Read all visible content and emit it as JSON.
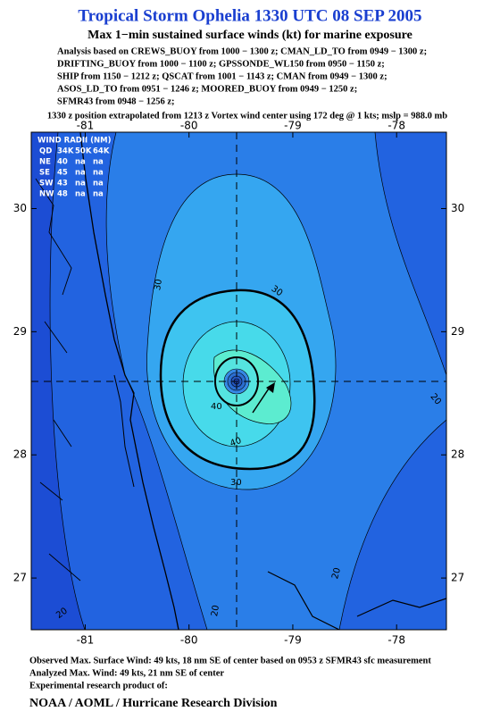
{
  "header": {
    "title": "Tropical Storm Ophelia 1330 UTC 08 SEP 2005",
    "subtitle": "Max 1−min sustained surface winds (kt) for marine exposure",
    "analysis_lines": [
      "Analysis based on  CREWS_BUOY from 1000 − 1300 z;  CMAN_LD_TO from 0949 − 1300 z;",
      "DRIFTING_BUOY from 1000 − 1100 z;  GPSSONDE_WL150 from 0950 − 1150 z;",
      "SHIP from 1150 − 1212 z;  QSCAT from 1001 − 1143 z;  CMAN from 0949 − 1300 z;",
      "ASOS_LD_TO from 0951 − 1246 z;  MOORED_BUOY from 0949 − 1250 z;",
      "SFMR43 from 0948 − 1256 z;"
    ],
    "position_note": "1330 z position extrapolated from 1213 z Vortex wind center using 172 deg @ 1 kts; mslp = 988.0 mb"
  },
  "map": {
    "xlim": [
      -81.52,
      -77.52
    ],
    "ylim": [
      26.58,
      30.62
    ],
    "xticks": [
      -81,
      -80,
      -79,
      -78
    ],
    "yticks": [
      27,
      28,
      29,
      30
    ],
    "contour_labels": [
      "30",
      "30",
      "40",
      "40",
      "30",
      "20",
      "20",
      "20",
      "20"
    ],
    "wind_radii": {
      "title": "WIND RADII (NM)",
      "columns": [
        "QD",
        "34K",
        "50K",
        "64K"
      ],
      "rows": [
        [
          "NE",
          40,
          "na",
          "na"
        ],
        [
          "SE",
          45,
          "na",
          "na"
        ],
        [
          "SW",
          43,
          "na",
          "na"
        ],
        [
          "NW",
          48,
          "na",
          "na"
        ]
      ]
    }
  },
  "footer": {
    "lines": [
      "Observed Max. Surface Wind: 49 kts, 18 nm SE of center based on 0953 z SFMR43 sfc measurement",
      "Analyzed Max. Wind: 49 kts, 21 nm SE of center",
      "Experimental research product of:"
    ],
    "organization": "NOAA / AOML / Hurricane Research Division"
  }
}
